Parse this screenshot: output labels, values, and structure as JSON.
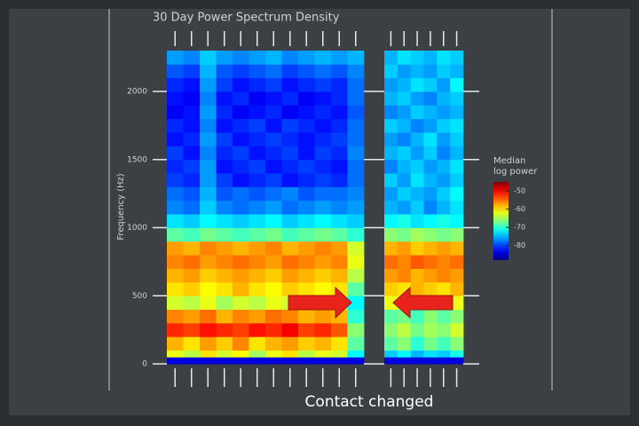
{
  "chart_data": {
    "type": "heatmap",
    "title": "30 Day Power Spectrum Density",
    "ylabel": "Frequency (Hz)",
    "ylim": [
      0,
      2300
    ],
    "yticks": [
      0,
      500,
      1000,
      1500,
      2000
    ],
    "ybins": [
      0,
      50,
      100,
      200,
      300,
      400,
      500,
      600,
      700,
      800,
      900,
      1000,
      1100,
      1200,
      1300,
      1400,
      1500,
      1600,
      1700,
      1800,
      1900,
      2000,
      2100,
      2200,
      2300
    ],
    "colormap": "jet",
    "colorbar": {
      "title": [
        "Median",
        "log power"
      ],
      "clim": [
        -88,
        -45
      ],
      "ticks": [
        -50,
        -60,
        -70,
        -80
      ]
    },
    "annotation": "Contact changed",
    "panels": [
      {
        "z": [
          [
            -84,
            -84,
            -84,
            -84,
            -84,
            -84,
            -84,
            -84,
            -84,
            -84,
            -84,
            -84
          ],
          [
            -62,
            -64,
            -60,
            -63,
            -61,
            -65,
            -62,
            -60,
            -64,
            -62,
            -63,
            -72
          ],
          [
            -58,
            -60,
            -57,
            -59,
            -56,
            -60,
            -58,
            -57,
            -59,
            -58,
            -60,
            -68
          ],
          [
            -52,
            -53,
            -51,
            -52,
            -53,
            -51,
            -52,
            -50,
            -53,
            -52,
            -54,
            -66
          ],
          [
            -56,
            -57,
            -55,
            -58,
            -56,
            -57,
            -55,
            -56,
            -58,
            -57,
            -58,
            -70
          ],
          [
            -63,
            -64,
            -62,
            -65,
            -63,
            -64,
            -62,
            -63,
            -65,
            -64,
            -64,
            -72
          ],
          [
            -60,
            -59,
            -61,
            -60,
            -58,
            -60,
            -61,
            -59,
            -60,
            -61,
            -60,
            -68
          ],
          [
            -58,
            -57,
            -59,
            -58,
            -57,
            -58,
            -59,
            -57,
            -58,
            -59,
            -58,
            -64
          ],
          [
            -56,
            -55,
            -57,
            -56,
            -55,
            -56,
            -57,
            -55,
            -56,
            -57,
            -56,
            -62
          ],
          [
            -57,
            -58,
            -56,
            -57,
            -58,
            -57,
            -56,
            -58,
            -57,
            -56,
            -57,
            -63
          ],
          [
            -68,
            -69,
            -67,
            -68,
            -69,
            -68,
            -67,
            -69,
            -68,
            -67,
            -68,
            -70
          ],
          [
            -73,
            -74,
            -72,
            -73,
            -74,
            -73,
            -72,
            -74,
            -73,
            -72,
            -73,
            -74
          ],
          [
            -77,
            -78,
            -74,
            -77,
            -78,
            -77,
            -76,
            -78,
            -77,
            -76,
            -77,
            -76
          ],
          [
            -78,
            -79,
            -75,
            -79,
            -78,
            -79,
            -78,
            -77,
            -79,
            -78,
            -78,
            -77
          ],
          [
            -80,
            -81,
            -76,
            -80,
            -82,
            -81,
            -80,
            -82,
            -81,
            -80,
            -81,
            -78
          ],
          [
            -81,
            -80,
            -76,
            -82,
            -81,
            -80,
            -82,
            -81,
            -80,
            -81,
            -82,
            -78
          ],
          [
            -80,
            -82,
            -77,
            -81,
            -80,
            -82,
            -81,
            -80,
            -82,
            -80,
            -81,
            -77
          ],
          [
            -82,
            -81,
            -76,
            -80,
            -82,
            -81,
            -80,
            -81,
            -82,
            -81,
            -80,
            -78
          ],
          [
            -81,
            -82,
            -77,
            -82,
            -81,
            -80,
            -82,
            -80,
            -81,
            -82,
            -81,
            -78
          ],
          [
            -83,
            -82,
            -76,
            -81,
            -83,
            -82,
            -81,
            -83,
            -82,
            -81,
            -82,
            -79
          ],
          [
            -82,
            -83,
            -77,
            -82,
            -81,
            -83,
            -82,
            -81,
            -83,
            -82,
            -81,
            -78
          ],
          [
            -81,
            -82,
            -76,
            -80,
            -82,
            -81,
            -80,
            -82,
            -81,
            -80,
            -81,
            -78
          ],
          [
            -79,
            -80,
            -75,
            -79,
            -80,
            -79,
            -78,
            -80,
            -79,
            -78,
            -79,
            -77
          ],
          [
            -76,
            -77,
            -74,
            -76,
            -77,
            -76,
            -75,
            -77,
            -76,
            -75,
            -76,
            -75
          ]
        ]
      },
      {
        "z": [
          [
            -84,
            -84,
            -84,
            -84,
            -84,
            -84
          ],
          [
            -74,
            -72,
            -75,
            -73,
            -74,
            -71
          ],
          [
            -68,
            -66,
            -70,
            -67,
            -69,
            -66
          ],
          [
            -66,
            -64,
            -67,
            -65,
            -66,
            -63
          ],
          [
            -68,
            -67,
            -69,
            -66,
            -68,
            -66
          ],
          [
            -62,
            -63,
            -61,
            -62,
            -63,
            -62
          ],
          [
            -59,
            -60,
            -58,
            -59,
            -60,
            -58
          ],
          [
            -57,
            -56,
            -58,
            -57,
            -56,
            -57
          ],
          [
            -55,
            -56,
            -54,
            -55,
            -56,
            -55
          ],
          [
            -58,
            -57,
            -59,
            -58,
            -57,
            -58
          ],
          [
            -66,
            -67,
            -65,
            -66,
            -67,
            -66
          ],
          [
            -72,
            -71,
            -73,
            -72,
            -71,
            -72
          ],
          [
            -75,
            -76,
            -74,
            -77,
            -75,
            -73
          ],
          [
            -76,
            -74,
            -75,
            -76,
            -74,
            -72
          ],
          [
            -74,
            -76,
            -73,
            -75,
            -76,
            -74
          ],
          [
            -77,
            -75,
            -74,
            -76,
            -75,
            -73
          ],
          [
            -75,
            -74,
            -76,
            -74,
            -77,
            -75
          ],
          [
            -76,
            -77,
            -75,
            -73,
            -76,
            -74
          ],
          [
            -74,
            -75,
            -77,
            -76,
            -74,
            -73
          ],
          [
            -77,
            -76,
            -74,
            -75,
            -76,
            -75
          ],
          [
            -75,
            -74,
            -76,
            -77,
            -75,
            -74
          ],
          [
            -76,
            -75,
            -73,
            -74,
            -76,
            -72
          ],
          [
            -74,
            -76,
            -75,
            -76,
            -74,
            -75
          ],
          [
            -75,
            -73,
            -74,
            -75,
            -73,
            -74
          ]
        ]
      }
    ]
  }
}
